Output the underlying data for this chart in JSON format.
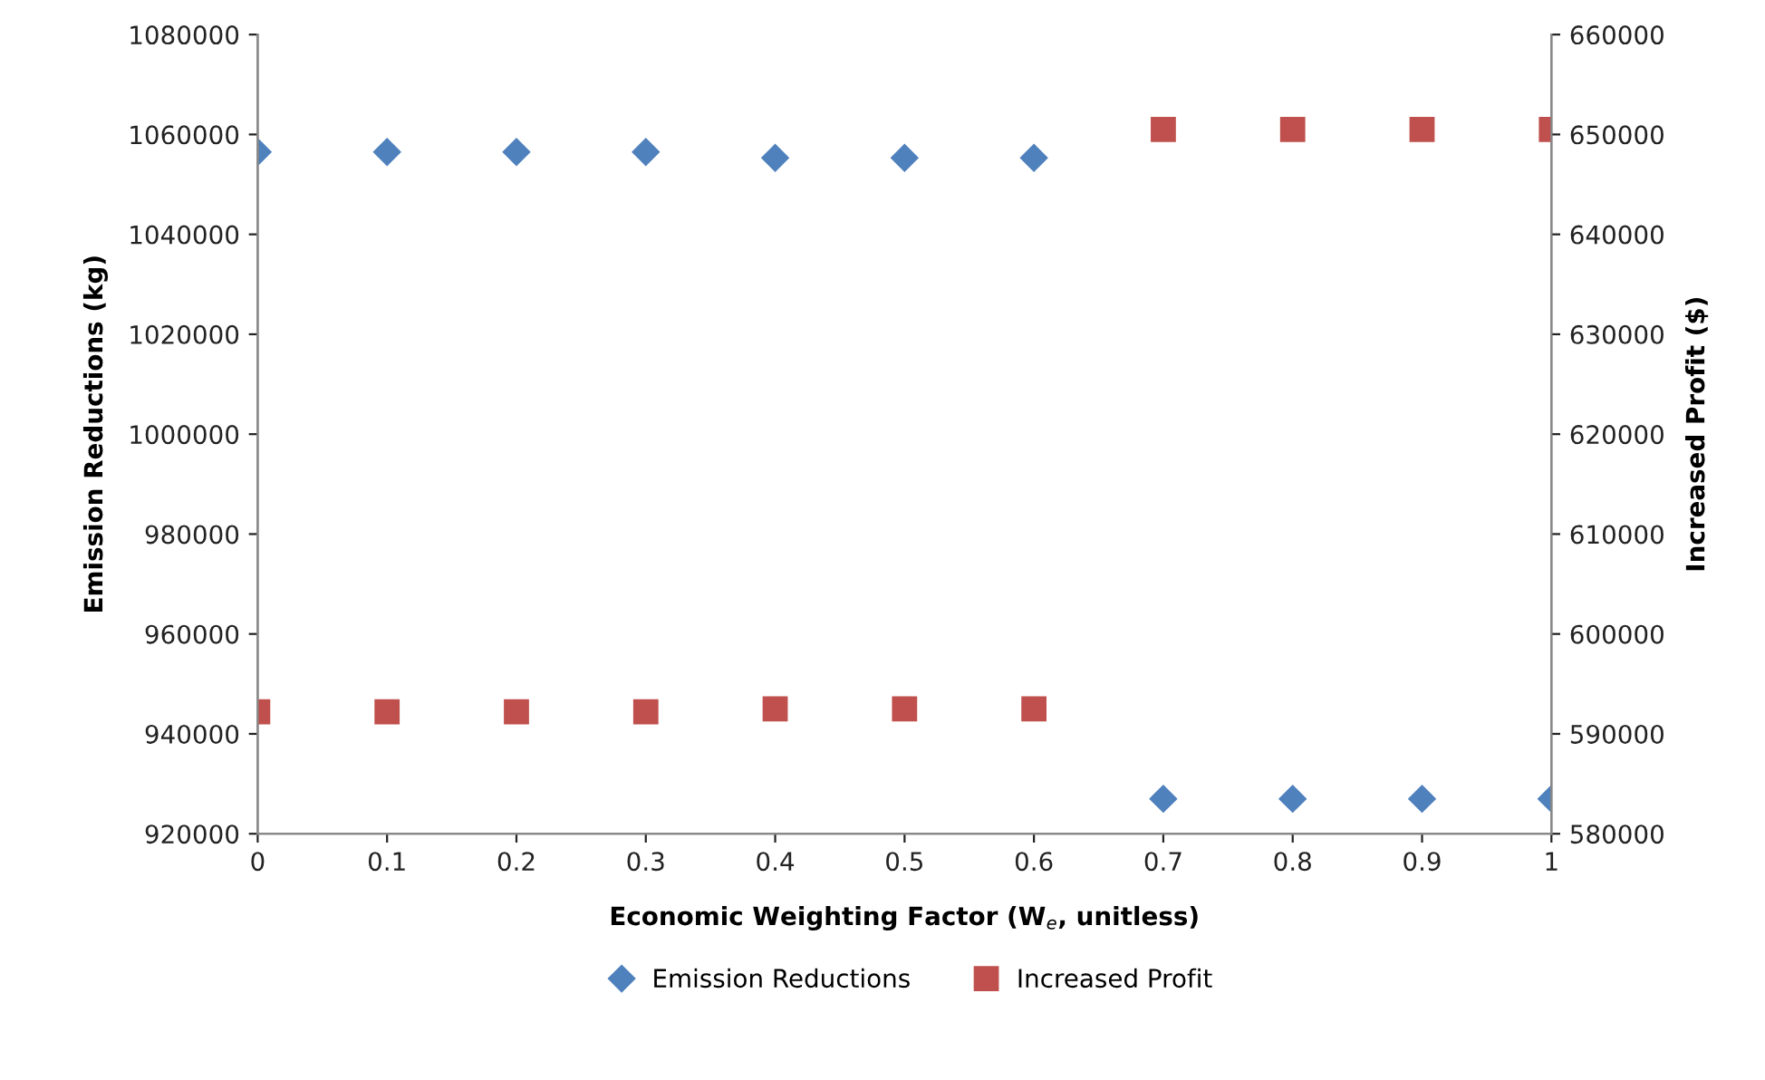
{
  "chart_data": {
    "type": "scatter",
    "xlabel": "Economic Weighting Factor (W$_{e}$, unitless)",
    "ylabel": "Emission Reductions (kg)",
    "y2label": "Increased Profit ($)",
    "x": [
      0,
      0.1,
      0.2,
      0.3,
      0.4,
      0.5,
      0.6,
      0.7,
      0.8,
      0.9,
      1
    ],
    "series": [
      {
        "name": "Emission Reductions",
        "color": "#4f81bd",
        "marker": "diamond",
        "values": [
          1056500,
          1056500,
          1056500,
          1056500,
          1055300,
          1055300,
          1055300,
          927000,
          927000,
          927000,
          927000
        ]
      },
      {
        "name": "Increased Profit",
        "color": "#c0504d",
        "marker": "square",
        "axis": "y2",
        "values": [
          592200,
          592200,
          592200,
          592200,
          592500,
          592500,
          592500,
          650500,
          650500,
          650500,
          650500
        ]
      }
    ],
    "xlim": [
      0,
      1
    ],
    "xticks": [
      0,
      0.1,
      0.2,
      0.3,
      0.4,
      0.5,
      0.6,
      0.7,
      0.8,
      0.9,
      1
    ],
    "ylim": [
      920000,
      1080000
    ],
    "yticks": [
      920000,
      940000,
      960000,
      980000,
      1000000,
      1020000,
      1040000,
      1060000,
      1080000
    ],
    "y2lim": [
      580000,
      660000
    ],
    "y2ticks": [
      580000,
      590000,
      600000,
      610000,
      620000,
      630000,
      640000,
      650000,
      660000
    ],
    "grid": false,
    "legend": "bottom"
  }
}
